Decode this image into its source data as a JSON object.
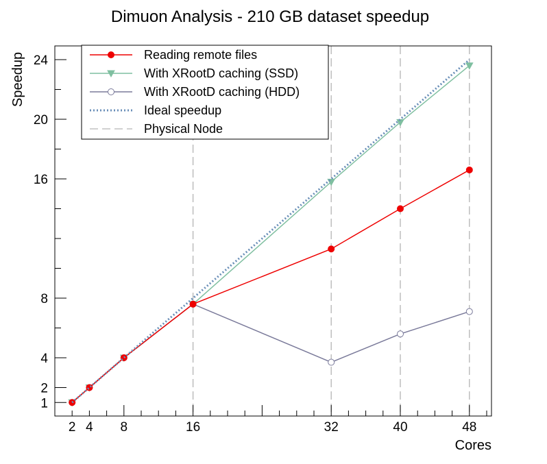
{
  "chart_data": {
    "type": "line",
    "title": "Dimuon Analysis - 210 GB dataset speedup",
    "xlabel": "Cores",
    "ylabel": "Speedup",
    "xlim": [
      0,
      50
    ],
    "ylim": [
      0,
      25
    ],
    "xticks": [
      2,
      4,
      8,
      16,
      32,
      40,
      48
    ],
    "yticks": [
      1,
      2,
      4,
      8,
      16,
      20,
      24
    ],
    "grid": false,
    "legend_position": "top-left",
    "x": [
      2,
      4,
      8,
      16,
      32,
      40,
      48
    ],
    "series": [
      {
        "name": "Reading remote files",
        "values": [
          1.0,
          2.0,
          4.0,
          7.6,
          11.3,
          14.0,
          16.6
        ],
        "color": "#ee0000",
        "marker": "filled-circle",
        "line": "solid"
      },
      {
        "name": "With XRootD caching (SSD)",
        "values": [
          1.0,
          2.0,
          4.0,
          7.6,
          15.8,
          19.8,
          23.6
        ],
        "color": "#7fbfa0",
        "marker": "filled-triangle-down",
        "line": "solid"
      },
      {
        "name": "With XRootD caching (HDD)",
        "values": [
          1.0,
          2.0,
          4.0,
          7.6,
          3.7,
          5.6,
          7.1
        ],
        "color": "#7a7a9a",
        "marker": "open-circle",
        "line": "solid"
      },
      {
        "name": "Ideal speedup",
        "values": [
          1,
          2,
          4,
          8,
          16,
          20,
          24
        ],
        "color": "#6a8fb8",
        "marker": "none",
        "line": "dotted"
      }
    ],
    "vlines": {
      "name": "Physical Node",
      "x": [
        16,
        32,
        40,
        48
      ],
      "color": "#b4b4b4",
      "line": "dashed"
    }
  }
}
